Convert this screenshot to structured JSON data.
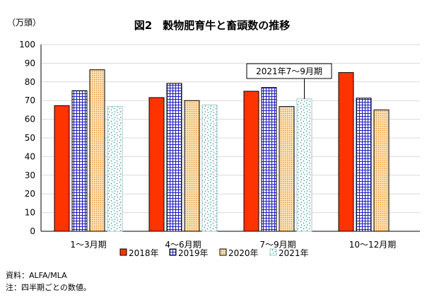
{
  "chart_data": {
    "type": "bar",
    "title": "図2　穀物肥育牛と畜頭数の推移",
    "unit_label": "（万頭）",
    "ylim": [
      0,
      100
    ],
    "yticks": [
      0,
      10,
      20,
      30,
      40,
      50,
      60,
      70,
      80,
      90,
      100
    ],
    "grid": true,
    "legend_position": "bottom",
    "categories": [
      "1～3月期",
      "4～6月期",
      "7～9月期",
      "10～12月期"
    ],
    "series": [
      {
        "name": "2018年",
        "values": [
          67.3,
          71.6,
          75.0,
          85.0
        ],
        "color": "#ff3300",
        "pattern": "solid"
      },
      {
        "name": "2019年",
        "values": [
          75.3,
          79.2,
          77.0,
          71.3
        ],
        "color": "#1c1cb8",
        "pattern": "grid"
      },
      {
        "name": "2020年",
        "values": [
          86.5,
          70.0,
          66.8,
          65.0
        ],
        "color": "#f5a855",
        "pattern": "dots"
      },
      {
        "name": "2021年",
        "values": [
          66.8,
          67.7,
          70.9,
          null
        ],
        "color": "#2d8c8c",
        "pattern": "scatter"
      }
    ],
    "annotation": {
      "text": "2021年7～9月期"
    }
  },
  "notes": {
    "source": "資料：ALFA/MLA",
    "note": "注：四半期ごとの数値。"
  }
}
